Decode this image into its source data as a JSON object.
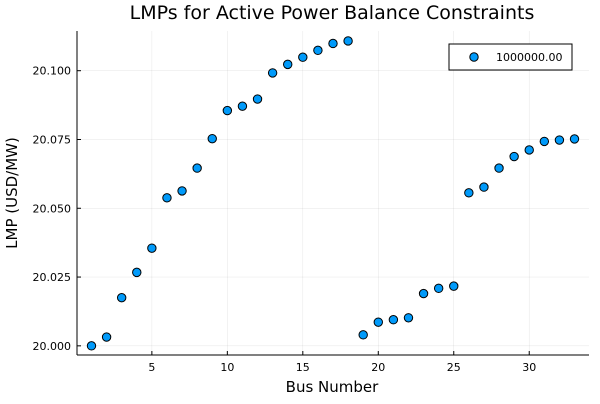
{
  "chart_data": {
    "type": "scatter",
    "title": "LMPs for Active Power Balance Constraints",
    "xlabel": "Bus Number",
    "ylabel": "LMP (USD/MW)",
    "xlim": [
      0.04,
      33.96
    ],
    "ylim": [
      19.99667,
      20.11443
    ],
    "xticks": [
      5,
      10,
      15,
      20,
      25,
      30
    ],
    "xtick_labels": [
      "5",
      "10",
      "15",
      "20",
      "25",
      "30"
    ],
    "yticks": [
      20.0,
      20.025,
      20.05,
      20.075,
      20.1
    ],
    "ytick_labels": [
      "20.000",
      "20.025",
      "20.050",
      "20.075",
      "20.100"
    ],
    "grid": true,
    "legend_position": "top-right",
    "series": [
      {
        "name": "1000000.00",
        "color": "#009AFA",
        "x": [
          1,
          2,
          3,
          4,
          5,
          6,
          7,
          8,
          9,
          10,
          11,
          12,
          13,
          14,
          15,
          16,
          17,
          18,
          19,
          20,
          21,
          22,
          23,
          24,
          25,
          26,
          27,
          28,
          29,
          30,
          31,
          32,
          33
        ],
        "y": [
          20.0,
          20.0032,
          20.0175,
          20.0267,
          20.0355,
          20.0538,
          20.0563,
          20.0646,
          20.0753,
          20.0855,
          20.0871,
          20.0897,
          20.0992,
          20.1023,
          20.1049,
          20.1074,
          20.1099,
          20.1108,
          20.004,
          20.0086,
          20.0095,
          20.0102,
          20.019,
          20.0209,
          20.0217,
          20.0556,
          20.0577,
          20.0646,
          20.0688,
          20.0712,
          20.0743,
          20.0748,
          20.0752
        ]
      }
    ]
  }
}
